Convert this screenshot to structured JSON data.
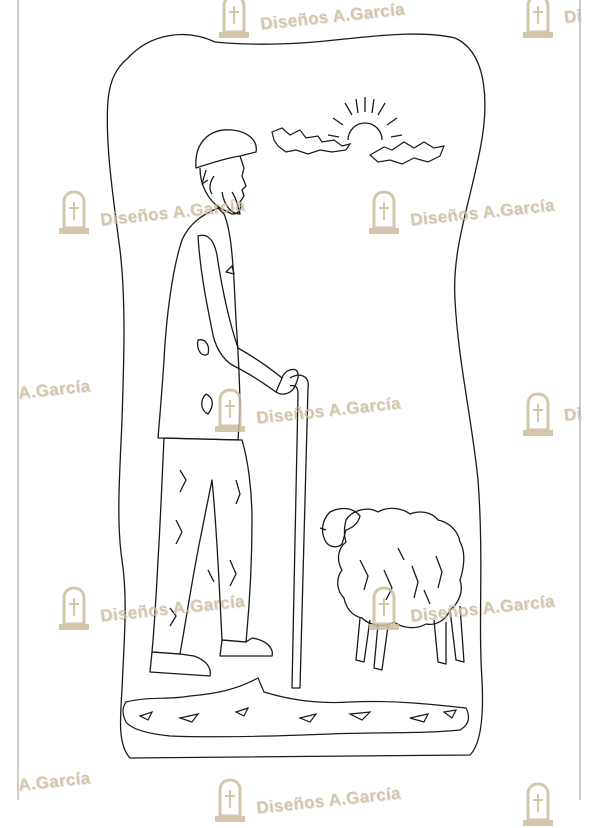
{
  "image": {
    "subject": "Tombstone engraving design: old shepherd with cane and a sheep under the sun",
    "colors": {
      "line": "#1a1a1a",
      "background": "#ffffff",
      "watermark": "#cdbd9c"
    }
  },
  "watermark": {
    "full_text": "Diseños A.García",
    "partial_text": "A.García",
    "edge_fragment": "Di",
    "icon": "tombstone-cross-icon"
  }
}
